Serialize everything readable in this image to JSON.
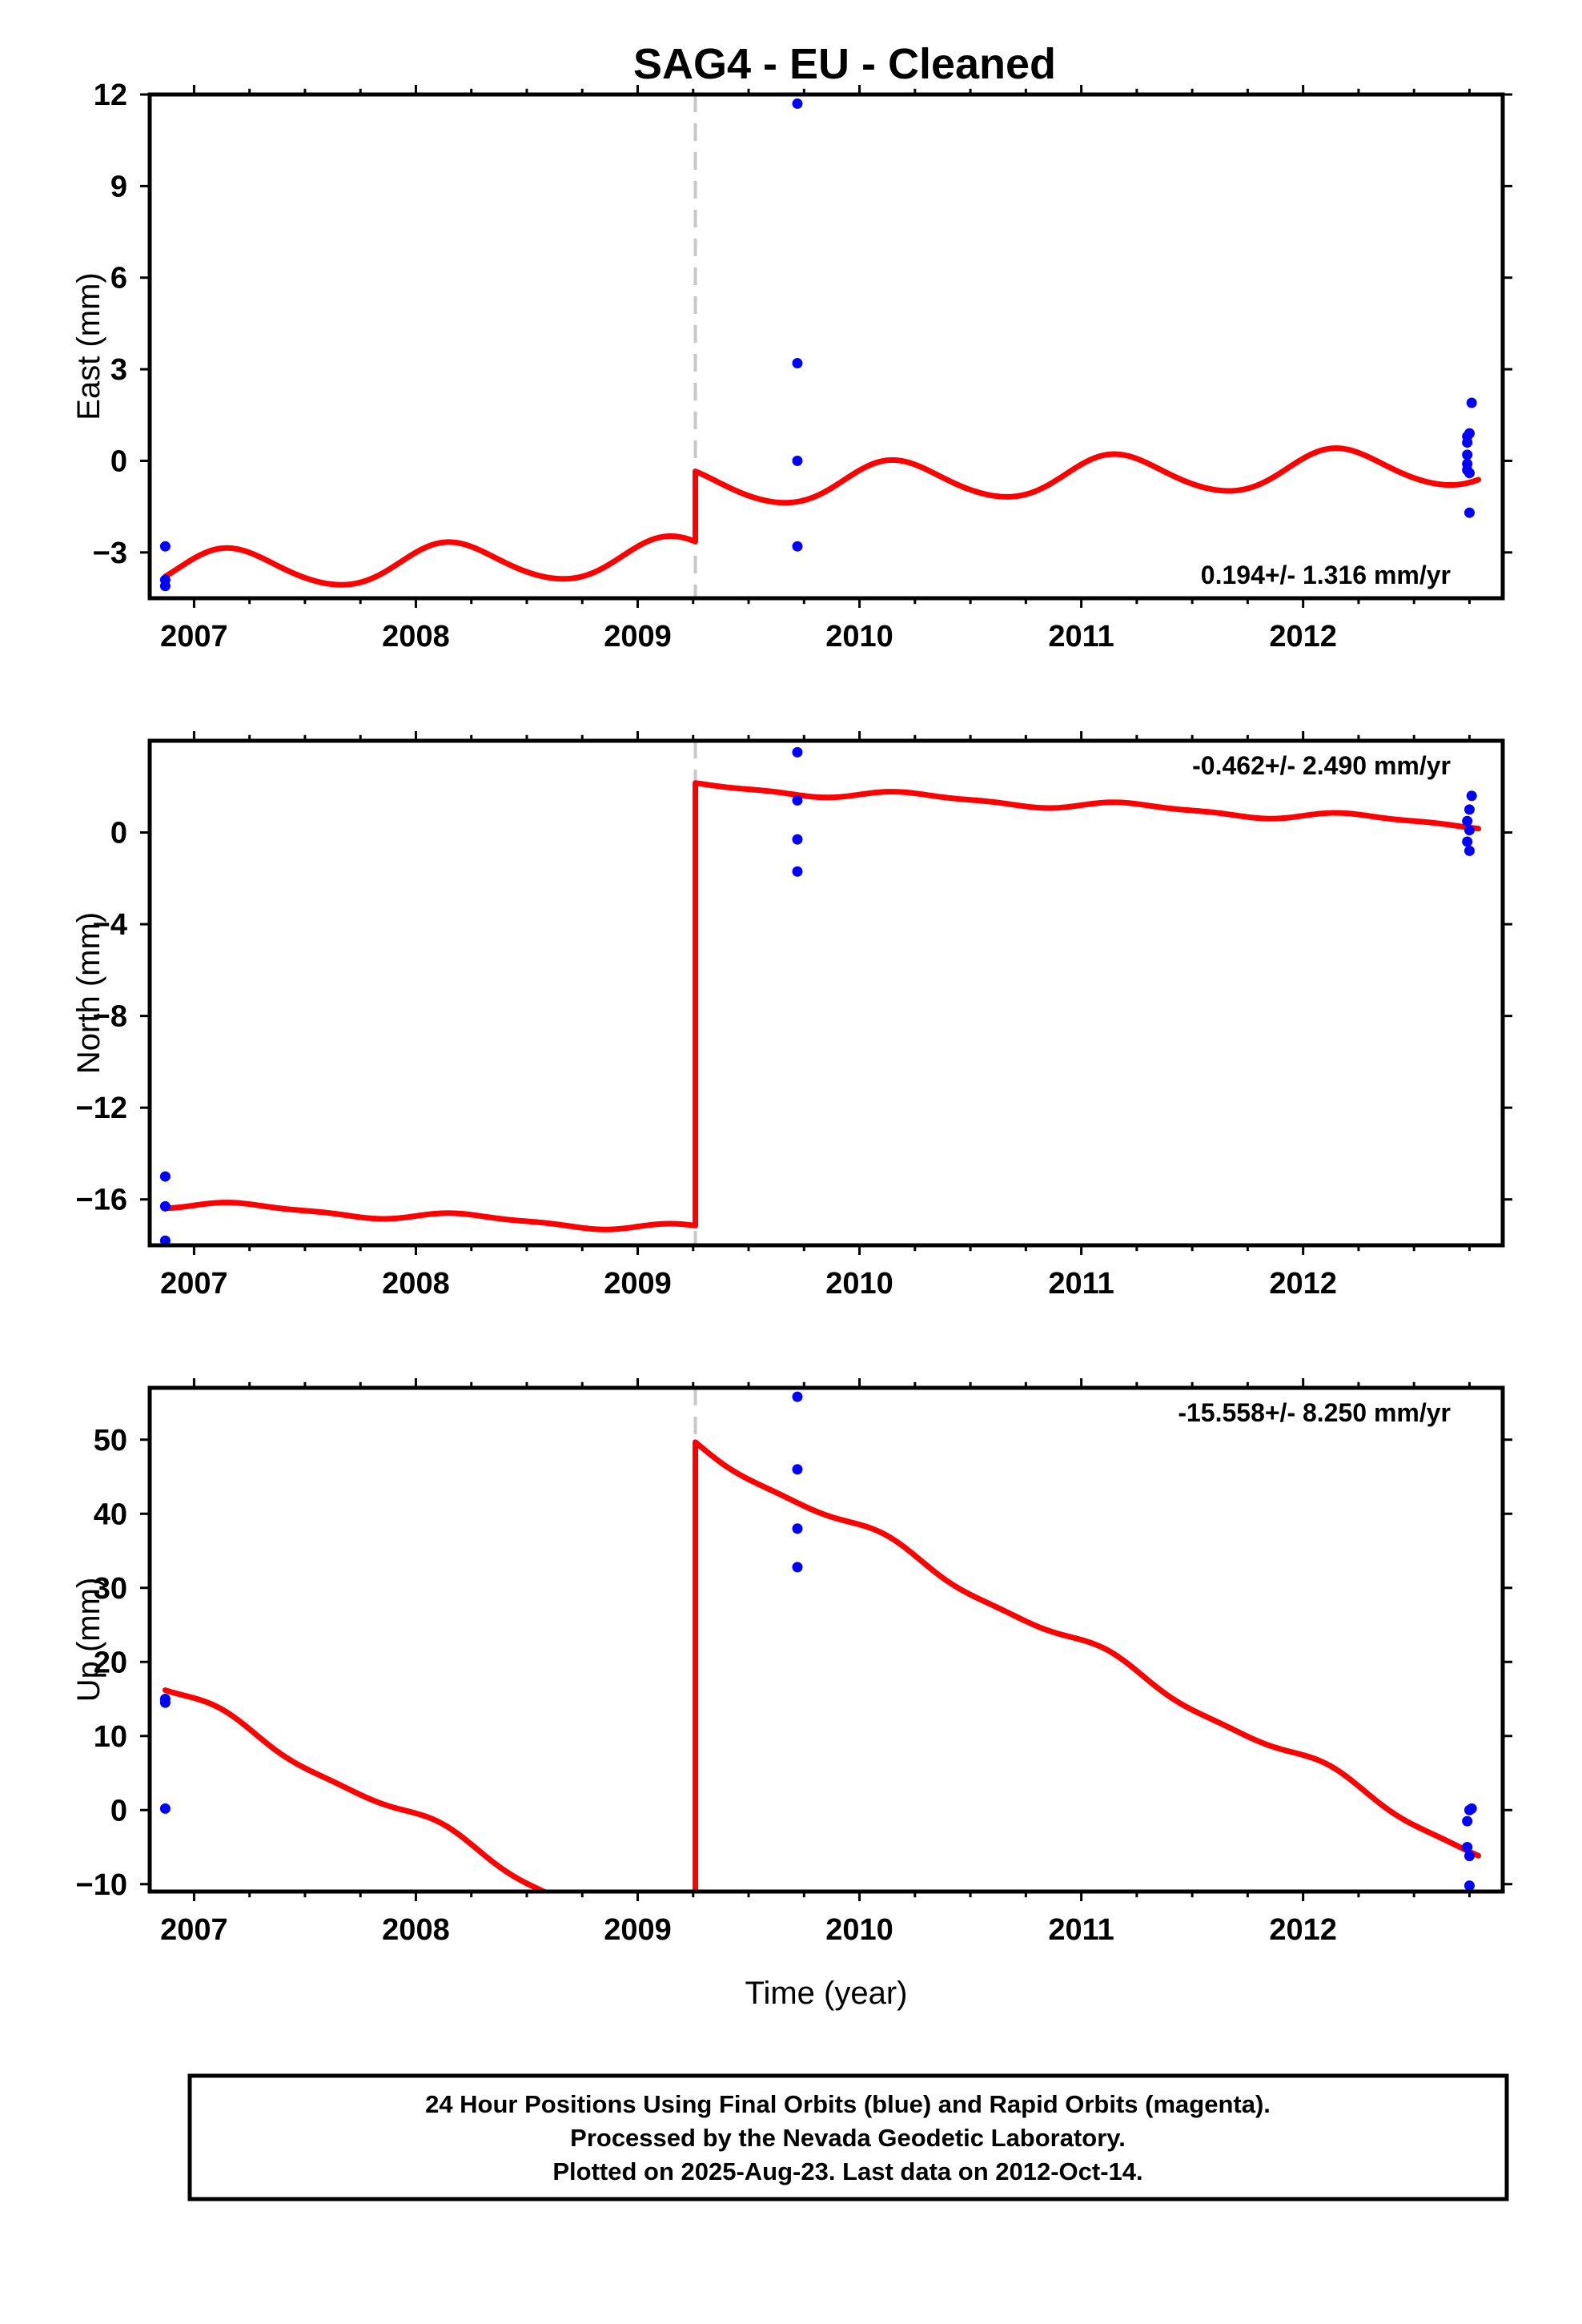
{
  "chart_data": [
    {
      "type": "scatter",
      "title": "SAG4  - EU - Cleaned",
      "xlabel": "",
      "ylabel": "East (mm)",
      "xlim": [
        2006.8,
        2012.9
      ],
      "ylim": [
        -4.5,
        12.0
      ],
      "xticks": [
        2007,
        2008,
        2009,
        2010,
        2011,
        2012
      ],
      "xtick_labels": [
        "2007",
        "2008",
        "2009",
        "2010",
        "2011",
        "2012"
      ],
      "yticks": [
        -3,
        0,
        3,
        6,
        9,
        12
      ],
      "ytick_labels": [
        "−3",
        "0",
        "3",
        "6",
        "9",
        "12"
      ],
      "rate_annotation": "0.194+/- 1.316 mm/yr",
      "rate_position": "bottom-right",
      "offset_epoch": 2009.26,
      "series": [
        {
          "name": "",
          "kind": "points",
          "color": "#0000ff",
          "x": [
            2006.87,
            2006.87,
            2006.87,
            2009.72,
            2009.72,
            2009.72,
            2009.72,
            2012.74,
            2012.74,
            2012.74,
            2012.74,
            2012.74,
            2012.75,
            2012.75,
            2012.75,
            2012.76
          ],
          "y": [
            -2.8,
            -3.9,
            -4.1,
            11.7,
            3.2,
            0.0,
            -2.8,
            0.8,
            0.6,
            0.2,
            -0.1,
            -0.3,
            0.9,
            -0.4,
            -1.7,
            1.9
          ]
        },
        {
          "name": "",
          "kind": "model",
          "color": "#ff0000",
          "trend": {
            "intercept": -3.6,
            "slope": 0.194,
            "t0": 2006.87
          },
          "jump": 2.3,
          "seasonal": {
            "annual_amp": 0.65,
            "annual_phase": 0.6,
            "semiannual_amp": 0.05,
            "semiannual_phase": 0.3
          },
          "segments": [
            [
              2006.87,
              2009.26
            ],
            [
              2009.26,
              2012.79
            ]
          ]
        }
      ]
    },
    {
      "type": "scatter",
      "title": "",
      "xlabel": "",
      "ylabel": "North (mm)",
      "xlim": [
        2006.8,
        2012.9
      ],
      "ylim": [
        -18.0,
        4.0
      ],
      "xticks": [
        2007,
        2008,
        2009,
        2010,
        2011,
        2012
      ],
      "xtick_labels": [
        "2007",
        "2008",
        "2009",
        "2010",
        "2011",
        "2012"
      ],
      "yticks": [
        -16,
        -12,
        -8,
        -4,
        0
      ],
      "ytick_labels": [
        "−16",
        "−12",
        "−8",
        "−4",
        "0"
      ],
      "rate_annotation": "-0.462+/- 2.490 mm/yr",
      "rate_position": "top-right",
      "offset_epoch": 2009.26,
      "series": [
        {
          "name": "",
          "kind": "points",
          "color": "#0000ff",
          "x": [
            2006.87,
            2006.87,
            2006.87,
            2009.72,
            2009.72,
            2009.72,
            2009.72,
            2012.74,
            2012.74,
            2012.75,
            2012.75,
            2012.75,
            2012.76
          ],
          "y": [
            -15.0,
            -16.3,
            -17.8,
            3.5,
            1.4,
            -0.3,
            -1.7,
            0.5,
            -0.4,
            1.0,
            0.1,
            -0.8,
            1.6
          ]
        },
        {
          "name": "",
          "kind": "model",
          "color": "#ff0000",
          "trend": {
            "intercept": -16.2,
            "slope": -0.462,
            "t0": 2006.87
          },
          "jump": 19.3,
          "seasonal": {
            "annual_amp": 0.17,
            "annual_phase": 0.0,
            "semiannual_amp": 0.06,
            "semiannual_phase": 0.0
          },
          "segments": [
            [
              2006.87,
              2009.26
            ],
            [
              2009.26,
              2012.79
            ]
          ]
        }
      ]
    },
    {
      "type": "scatter",
      "title": "",
      "xlabel": "Time (year)",
      "ylabel": "Up (mm)",
      "xlim": [
        2006.8,
        2012.9
      ],
      "ylim": [
        -11.0,
        57.0
      ],
      "xticks": [
        2007,
        2008,
        2009,
        2010,
        2011,
        2012
      ],
      "xtick_labels": [
        "2007",
        "2008",
        "2009",
        "2010",
        "2011",
        "2012"
      ],
      "yticks": [
        -10,
        0,
        10,
        20,
        30,
        40,
        50
      ],
      "ytick_labels": [
        "−10",
        "0",
        "10",
        "20",
        "30",
        "40",
        "50"
      ],
      "rate_annotation": "-15.558+/- 8.250 mm/yr",
      "rate_position": "top-right",
      "offset_epoch": 2009.26,
      "series": [
        {
          "name": "",
          "kind": "points",
          "color": "#0000ff",
          "x": [
            2006.87,
            2006.87,
            2006.87,
            2009.72,
            2009.72,
            2009.72,
            2009.72,
            2012.74,
            2012.74,
            2012.75,
            2012.75,
            2012.75,
            2012.76
          ],
          "y": [
            15.0,
            14.5,
            0.2,
            55.8,
            46.0,
            38.0,
            32.8,
            -1.5,
            -5.0,
            -10.2,
            0.0,
            -6.2,
            0.2
          ]
        },
        {
          "name": "",
          "kind": "model",
          "color": "#ff0000",
          "trend": {
            "intercept": 16.3,
            "slope": -15.558,
            "t0": 2006.87
          },
          "jump": 70.1,
          "seasonal": {
            "annual_amp": 1.0,
            "annual_phase": 1.0,
            "semiannual_amp": 0.3,
            "semiannual_phase": 0.0
          },
          "segments": [
            [
              2006.87,
              2009.26
            ],
            [
              2009.26,
              2012.79
            ]
          ]
        }
      ]
    }
  ],
  "footer": {
    "line1": "24 Hour Positions Using Final Orbits (blue) and Rapid Orbits (magenta).",
    "line2": "Processed by the Nevada Geodetic Laboratory.",
    "line3": "Plotted on 2025-Aug-23. Last data on 2012-Oct-14."
  },
  "colors": {
    "final_orbit_points": "#0000ff",
    "model_line": "#ff0000",
    "offset_marker": "#c8c8c8",
    "frame": "#000000"
  }
}
